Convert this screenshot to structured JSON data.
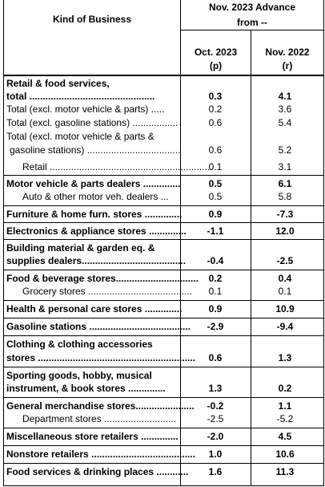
{
  "header": {
    "kind": "Kind of Business",
    "advance": "Nov. 2023 Advance",
    "from": "from --",
    "col1": "Oct. 2023",
    "col1_sub": "(p)",
    "col2": "Nov. 2022",
    "col2_sub": "(r)"
  },
  "rows": {
    "r0": {
      "l1": "Retail & food services,",
      "l2": "total ",
      "d": "...............................................",
      "v1": "0.3",
      "v2": "4.1"
    },
    "r1": {
      "l": "Total (excl. motor vehicle & parts) .....",
      "v1": "0.2",
      "v2": "3.6"
    },
    "r2": {
      "l": "Total (excl. gasoline stations) .................",
      "v1": "0.6",
      "v2": "5.4"
    },
    "r3": {
      "l1": "Total (excl. motor vehicle & parts &",
      "l2": "gasoline stations) ...................................",
      "v1": "0.6",
      "v2": "5.2"
    },
    "r4": {
      "l": "Retail ............................................................",
      "v1": "0.1",
      "v2": "3.1"
    },
    "r5": {
      "l": "Motor vehicle & parts dealers ..............",
      "v1": "0.5",
      "v2": "6.1"
    },
    "r6": {
      "l": "Auto & other motor veh. dealers ...",
      "v1": "0.5",
      "v2": "5.8"
    },
    "r7": {
      "l": "Furniture & home furn. stores ..............",
      "v1": "0.9",
      "v2": "-7.3"
    },
    "r8": {
      "l": "Electronics & appliance stores ..............",
      "v1": "-1.1",
      "v2": "12.0"
    },
    "r9": {
      "l1": "Building material & garden eq. &",
      "l2": "supplies dealers.......................................",
      "v1": "-0.4",
      "v2": "-2.5"
    },
    "r10": {
      "l": "Food & beverage stores...............................",
      "v1": "0.2",
      "v2": "0.4"
    },
    "r11": {
      "l": "Grocery stores .......................................",
      "v1": "0.1",
      "v2": "0.1"
    },
    "r12": {
      "l": "Health & personal care stores ..............",
      "v1": "0.9",
      "v2": "10.9"
    },
    "r13": {
      "l": "Gasoline stations ......................................",
      "v1": "-2.9",
      "v2": "-9.4"
    },
    "r14": {
      "l1": "Clothing & clothing accessories",
      "l2": "stores ...........................................................",
      "v1": "0.6",
      "v2": "1.3"
    },
    "r15": {
      "l1": "Sporting goods, hobby, musical",
      "l2": "instrument, & book stores ..............",
      "v1": "1.3",
      "v2": "0.2"
    },
    "r16": {
      "l": "General merchandise stores......................",
      "v1": "-0.2",
      "v2": "1.1"
    },
    "r17": {
      "l": "Department stores ...........................",
      "v1": "-2.5",
      "v2": "-5.2"
    },
    "r18": {
      "l": "Miscellaneous store retailers ..............",
      "v1": "-2.0",
      "v2": "4.5"
    },
    "r19": {
      "l": "Nonstore retailers .......................................",
      "v1": "1.0",
      "v2": "10.6"
    },
    "r20": {
      "l": "Food services & drinking places ............",
      "v1": "1.6",
      "v2": "11.3"
    }
  }
}
